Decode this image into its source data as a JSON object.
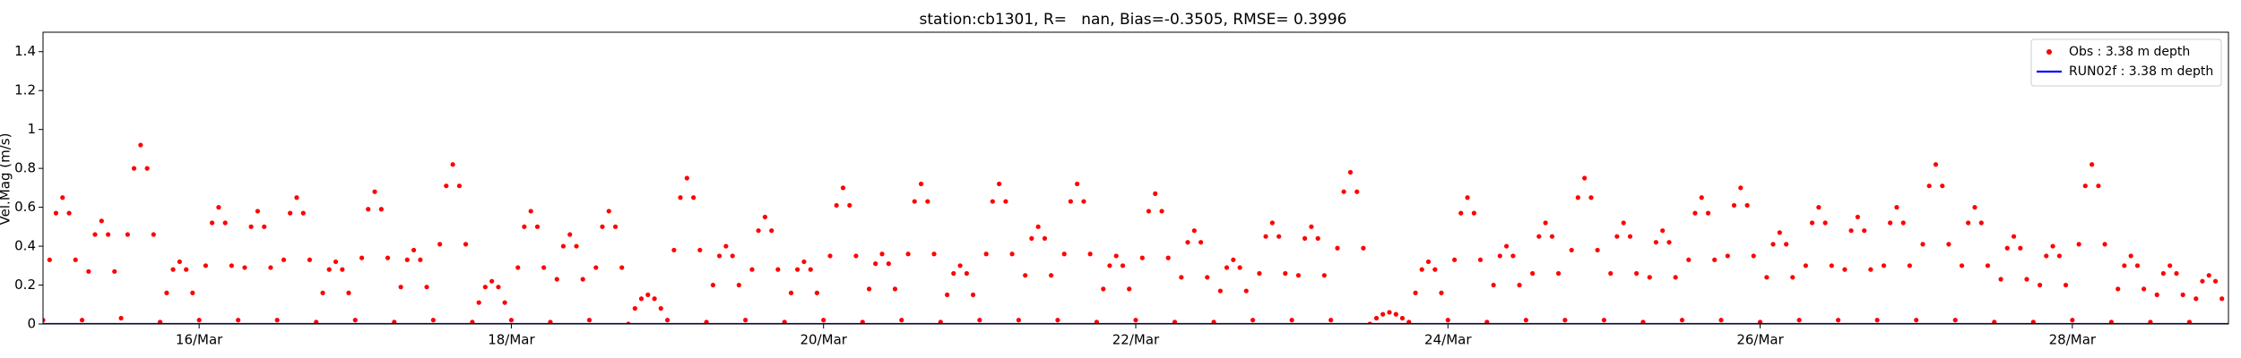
{
  "chart_data": {
    "type": "scatter",
    "title": "station:cb1301, R=   nan, Bias=-0.3505, RMSE= 0.3996",
    "ylabel": "Vel.Mag (m/s)",
    "xlim": [
      15,
      29
    ],
    "ylim": [
      0,
      1.5
    ],
    "xticks": [
      {
        "value": 16,
        "label": "16/Mar"
      },
      {
        "value": 18,
        "label": "18/Mar"
      },
      {
        "value": 20,
        "label": "20/Mar"
      },
      {
        "value": 22,
        "label": "22/Mar"
      },
      {
        "value": 24,
        "label": "24/Mar"
      },
      {
        "value": 26,
        "label": "26/Mar"
      },
      {
        "value": 28,
        "label": "28/Mar"
      }
    ],
    "yticks": [
      0,
      0.2,
      0.4,
      0.6,
      0.8,
      1.0,
      1.2,
      1.4
    ],
    "legend": "upper right",
    "series": [
      {
        "name": "Obs : 3.38 m depth",
        "color": "#ff0000",
        "style": "marker",
        "x": [
          15,
          15.042,
          15.083,
          15.125,
          15.167,
          15.208,
          15.25,
          15.292,
          15.333,
          15.375,
          15.417,
          15.458,
          15.5,
          15.542,
          15.583,
          15.625,
          15.667,
          15.708,
          15.75,
          15.792,
          15.833,
          15.875,
          15.917,
          15.958,
          16,
          16.042,
          16.083,
          16.125,
          16.167,
          16.208,
          16.25,
          16.292,
          16.333,
          16.375,
          16.417,
          16.458,
          16.5,
          16.542,
          16.583,
          16.625,
          16.667,
          16.708,
          16.75,
          16.792,
          16.833,
          16.875,
          16.917,
          16.958,
          17,
          17.042,
          17.083,
          17.125,
          17.167,
          17.208,
          17.25,
          17.292,
          17.333,
          17.375,
          17.417,
          17.458,
          17.5,
          17.542,
          17.583,
          17.625,
          17.667,
          17.708,
          17.75,
          17.792,
          17.833,
          17.875,
          17.917,
          17.958,
          18,
          18.042,
          18.083,
          18.125,
          18.167,
          18.208,
          18.25,
          18.292,
          18.333,
          18.375,
          18.417,
          18.458,
          18.5,
          18.542,
          18.583,
          18.625,
          18.667,
          18.708,
          18.75,
          18.792,
          18.833,
          18.875,
          18.917,
          18.958,
          19,
          19.042,
          19.083,
          19.125,
          19.167,
          19.208,
          19.25,
          19.292,
          19.333,
          19.375,
          19.417,
          19.458,
          19.5,
          19.542,
          19.583,
          19.625,
          19.667,
          19.708,
          19.75,
          19.792,
          19.833,
          19.875,
          19.917,
          19.958,
          20,
          20.042,
          20.083,
          20.125,
          20.167,
          20.208,
          20.25,
          20.292,
          20.333,
          20.375,
          20.417,
          20.458,
          20.5,
          20.542,
          20.583,
          20.625,
          20.667,
          20.708,
          20.75,
          20.792,
          20.833,
          20.875,
          20.917,
          20.958,
          21,
          21.042,
          21.083,
          21.125,
          21.167,
          21.208,
          21.25,
          21.292,
          21.333,
          21.375,
          21.417,
          21.458,
          21.5,
          21.542,
          21.583,
          21.625,
          21.667,
          21.708,
          21.75,
          21.792,
          21.833,
          21.875,
          21.917,
          21.958,
          22,
          22.042,
          22.083,
          22.125,
          22.167,
          22.208,
          22.25,
          22.292,
          22.333,
          22.375,
          22.417,
          22.458,
          22.5,
          22.542,
          22.583,
          22.625,
          22.667,
          22.708,
          22.75,
          22.792,
          22.833,
          22.875,
          22.917,
          22.958,
          23,
          23.042,
          23.083,
          23.125,
          23.167,
          23.208,
          23.25,
          23.292,
          23.333,
          23.375,
          23.417,
          23.458,
          23.5,
          23.542,
          23.583,
          23.625,
          23.667,
          23.708,
          23.75,
          23.792,
          23.833,
          23.875,
          23.917,
          23.958,
          24,
          24.042,
          24.083,
          24.125,
          24.167,
          24.208,
          24.25,
          24.292,
          24.333,
          24.375,
          24.417,
          24.458,
          24.5,
          24.542,
          24.583,
          24.625,
          24.667,
          24.708,
          24.75,
          24.792,
          24.833,
          24.875,
          24.917,
          24.958,
          25,
          25.042,
          25.083,
          25.125,
          25.167,
          25.208,
          25.25,
          25.292,
          25.333,
          25.375,
          25.417,
          25.458,
          25.5,
          25.542,
          25.583,
          25.625,
          25.667,
          25.708,
          25.75,
          25.792,
          25.833,
          25.875,
          25.917,
          25.958,
          26,
          26.042,
          26.083,
          26.125,
          26.167,
          26.208,
          26.25,
          26.292,
          26.333,
          26.375,
          26.417,
          26.458,
          26.5,
          26.542,
          26.583,
          26.625,
          26.667,
          26.708,
          26.75,
          26.792,
          26.833,
          26.875,
          26.917,
          26.958,
          27,
          27.042,
          27.083,
          27.125,
          27.167,
          27.208,
          27.25,
          27.292,
          27.333,
          27.375,
          27.417,
          27.458,
          27.5,
          27.542,
          27.583,
          27.625,
          27.667,
          27.708,
          27.75,
          27.792,
          27.833,
          27.875,
          27.917,
          27.958,
          28,
          28.042,
          28.083,
          28.125,
          28.167,
          28.208,
          28.25,
          28.292,
          28.333,
          28.375,
          28.417,
          28.458,
          28.5,
          28.542,
          28.583,
          28.625,
          28.667,
          28.708,
          28.75,
          28.792,
          28.833,
          28.875,
          28.917,
          28.958
        ],
        "values": [
          0.02,
          0.33,
          0.57,
          0.65,
          0.57,
          0.33,
          0.02,
          0.27,
          0.46,
          0.53,
          0.46,
          0.27,
          0.03,
          0.46,
          0.8,
          0.92,
          0.8,
          0.46,
          0.01,
          0.16,
          0.28,
          0.32,
          0.28,
          0.16,
          0.02,
          0.3,
          0.52,
          0.6,
          0.52,
          0.3,
          0.02,
          0.29,
          0.5,
          0.58,
          0.5,
          0.29,
          0.02,
          0.33,
          0.57,
          0.65,
          0.57,
          0.33,
          0.01,
          0.16,
          0.28,
          0.32,
          0.28,
          0.16,
          0.02,
          0.34,
          0.59,
          0.68,
          0.59,
          0.34,
          0.01,
          0.19,
          0.33,
          0.38,
          0.33,
          0.19,
          0.02,
          0.41,
          0.71,
          0.82,
          0.71,
          0.41,
          0.01,
          0.11,
          0.19,
          0.22,
          0.19,
          0.11,
          0.02,
          0.29,
          0.5,
          0.58,
          0.5,
          0.29,
          0.01,
          0.23,
          0.4,
          0.46,
          0.4,
          0.23,
          0.02,
          0.29,
          0.5,
          0.58,
          0.5,
          0.29,
          0,
          0.08,
          0.13,
          0.15,
          0.13,
          0.08,
          0.02,
          0.38,
          0.65,
          0.75,
          0.65,
          0.38,
          0.01,
          0.2,
          0.35,
          0.4,
          0.35,
          0.2,
          0.02,
          0.28,
          0.48,
          0.55,
          0.48,
          0.28,
          0.01,
          0.16,
          0.28,
          0.32,
          0.28,
          0.16,
          0.02,
          0.35,
          0.61,
          0.7,
          0.61,
          0.35,
          0.01,
          0.18,
          0.31,
          0.36,
          0.31,
          0.18,
          0.02,
          0.36,
          0.63,
          0.72,
          0.63,
          0.36,
          0.01,
          0.15,
          0.26,
          0.3,
          0.26,
          0.15,
          0.02,
          0.36,
          0.63,
          0.72,
          0.63,
          0.36,
          0.02,
          0.25,
          0.44,
          0.5,
          0.44,
          0.25,
          0.02,
          0.36,
          0.63,
          0.72,
          0.63,
          0.36,
          0.01,
          0.18,
          0.3,
          0.35,
          0.3,
          0.18,
          0.02,
          0.34,
          0.58,
          0.67,
          0.58,
          0.34,
          0.01,
          0.24,
          0.42,
          0.48,
          0.42,
          0.24,
          0.01,
          0.17,
          0.29,
          0.33,
          0.29,
          0.17,
          0.02,
          0.26,
          0.45,
          0.52,
          0.45,
          0.26,
          0.02,
          0.25,
          0.44,
          0.5,
          0.44,
          0.25,
          0.02,
          0.39,
          0.68,
          0.78,
          0.68,
          0.39,
          0,
          0.03,
          0.05,
          0.06,
          0.05,
          0.03,
          0.01,
          0.16,
          0.28,
          0.32,
          0.28,
          0.16,
          0.02,
          0.33,
          0.57,
          0.65,
          0.57,
          0.33,
          0.01,
          0.2,
          0.35,
          0.4,
          0.35,
          0.2,
          0.02,
          0.26,
          0.45,
          0.52,
          0.45,
          0.26,
          0.02,
          0.38,
          0.65,
          0.75,
          0.65,
          0.38,
          0.02,
          0.26,
          0.45,
          0.52,
          0.45,
          0.26,
          0.01,
          0.24,
          0.42,
          0.48,
          0.42,
          0.24,
          0.02,
          0.33,
          0.57,
          0.65,
          0.57,
          0.33,
          0.02,
          0.35,
          0.61,
          0.7,
          0.61,
          0.35,
          0.01,
          0.24,
          0.41,
          0.47,
          0.41,
          0.24,
          0.02,
          0.3,
          0.52,
          0.6,
          0.52,
          0.3,
          0.02,
          0.28,
          0.48,
          0.55,
          0.48,
          0.28,
          0.02,
          0.3,
          0.52,
          0.6,
          0.52,
          0.3,
          0.02,
          0.41,
          0.71,
          0.82,
          0.71,
          0.41,
          0.02,
          0.3,
          0.52,
          0.6,
          0.52,
          0.3,
          0.01,
          0.23,
          0.39,
          0.45,
          0.39,
          0.23,
          0.01,
          0.2,
          0.35,
          0.4,
          0.35,
          0.2,
          0.02,
          0.41,
          0.71,
          0.82,
          0.71,
          0.41,
          0.01,
          0.18,
          0.3,
          0.35,
          0.3,
          0.18,
          0.01,
          0.15,
          0.26,
          0.3,
          0.26,
          0.15,
          0.01,
          0.13,
          0.22,
          0.25,
          0.22,
          0.13
        ]
      },
      {
        "name": "RUN02f : 3.38 m depth",
        "color": "#0000ff",
        "style": "line",
        "x": [
          15,
          29
        ],
        "values": [
          0,
          0
        ]
      }
    ]
  }
}
